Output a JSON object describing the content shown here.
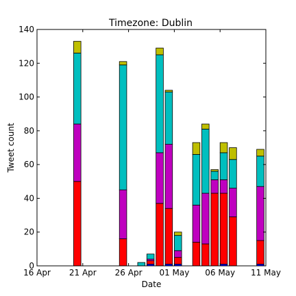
{
  "chart_data": {
    "type": "bar",
    "stacked": true,
    "title": "Timezone: Dublin",
    "xlabel": "Date",
    "ylabel": "Tweet count",
    "xlim": [
      "2016-04-16",
      "2016-05-11"
    ],
    "ylim": [
      0,
      140
    ],
    "grid": false,
    "x_ticks": [
      {
        "date": "2016-04-16",
        "label": "16 Apr"
      },
      {
        "date": "2016-04-21",
        "label": "21 Apr"
      },
      {
        "date": "2016-04-26",
        "label": "26 Apr"
      },
      {
        "date": "2016-05-01",
        "label": "01 May"
      },
      {
        "date": "2016-05-06",
        "label": "06 May"
      },
      {
        "date": "2016-05-11",
        "label": "11 May"
      }
    ],
    "y_ticks": [
      0,
      20,
      40,
      60,
      80,
      100,
      120,
      140
    ],
    "series_colors": [
      "#0000ff",
      "#ff0000",
      "#bf00bf",
      "#00bfbf",
      "#bfbf00"
    ],
    "bars": [
      {
        "date": "2016-04-20",
        "values": [
          0,
          50,
          34,
          42,
          7
        ]
      },
      {
        "date": "2016-04-25",
        "values": [
          0,
          16,
          29,
          74,
          2
        ]
      },
      {
        "date": "2016-04-27",
        "values": [
          0,
          0,
          0,
          2,
          0
        ]
      },
      {
        "date": "2016-04-28",
        "values": [
          1,
          2,
          1,
          3,
          0
        ]
      },
      {
        "date": "2016-04-29",
        "values": [
          0,
          37,
          30,
          58,
          4
        ]
      },
      {
        "date": "2016-04-30",
        "values": [
          1,
          33,
          38,
          31,
          1
        ]
      },
      {
        "date": "2016-05-01",
        "values": [
          1,
          4,
          4,
          9,
          2
        ]
      },
      {
        "date": "2016-05-03",
        "values": [
          0,
          14,
          22,
          30,
          7
        ]
      },
      {
        "date": "2016-05-04",
        "values": [
          0,
          13,
          30,
          38,
          3
        ]
      },
      {
        "date": "2016-05-05",
        "values": [
          0,
          43,
          8,
          5,
          1
        ]
      },
      {
        "date": "2016-05-06",
        "values": [
          1,
          42,
          8,
          16,
          6
        ]
      },
      {
        "date": "2016-05-07",
        "values": [
          0,
          29,
          17,
          17,
          7
        ]
      },
      {
        "date": "2016-05-10",
        "values": [
          1,
          14,
          32,
          18,
          4
        ]
      }
    ]
  }
}
